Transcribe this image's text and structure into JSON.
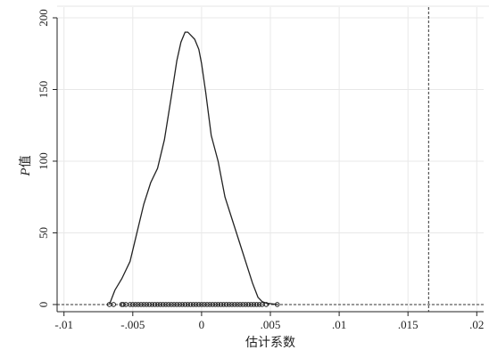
{
  "chart_data": {
    "type": "line",
    "xlabel": "估计系数",
    "ylabel_italic": "P",
    "ylabel_rest": "值",
    "xlim": [
      -0.0105,
      0.0205
    ],
    "ylim": [
      -5,
      200
    ],
    "x_ticks": [
      {
        "value": -0.01,
        "label": "-.01"
      },
      {
        "value": -0.005,
        "label": "-.005"
      },
      {
        "value": 0,
        "label": "0"
      },
      {
        "value": 0.005,
        "label": ".005"
      },
      {
        "value": 0.01,
        "label": ".01"
      },
      {
        "value": 0.015,
        "label": ".015"
      },
      {
        "value": 0.02,
        "label": ".02"
      }
    ],
    "y_ticks": [
      {
        "value": 0,
        "label": "0"
      },
      {
        "value": 50,
        "label": "50"
      },
      {
        "value": 100,
        "label": "100"
      },
      {
        "value": 150,
        "label": "150"
      },
      {
        "value": 200,
        "label": "200"
      }
    ],
    "grid": true,
    "reference_lines": {
      "vertical_x": 0.0165,
      "horizontal_y": 0
    },
    "series": [
      {
        "type": "density_line",
        "color": "#222222",
        "x": [
          -0.0067,
          -0.0063,
          -0.0058,
          -0.0052,
          -0.0047,
          -0.0042,
          -0.0037,
          -0.0032,
          -0.0027,
          -0.0022,
          -0.0018,
          -0.0015,
          -0.0012,
          -0.001,
          -0.0008,
          -0.0005,
          -0.0002,
          0.0,
          0.0003,
          0.0007,
          0.0012,
          0.0017,
          0.0022,
          0.0027,
          0.0032,
          0.0037,
          0.0041,
          0.0044,
          0.0047,
          0.0051,
          0.0055
        ],
        "y": [
          0,
          10,
          18,
          30,
          50,
          70,
          85,
          95,
          115,
          145,
          170,
          183,
          190,
          190,
          188,
          185,
          178,
          168,
          148,
          118,
          100,
          75,
          60,
          45,
          30,
          15,
          5,
          2,
          1,
          0.5,
          0
        ]
      },
      {
        "type": "rug_points",
        "color": "#222222",
        "y": 0,
        "x": [
          -0.0067,
          -0.0064,
          -0.0058,
          -0.0057,
          -0.0055,
          -0.0052,
          -0.005,
          -0.0048,
          -0.0046,
          -0.0044,
          -0.0042,
          -0.004,
          -0.0038,
          -0.0036,
          -0.0034,
          -0.0032,
          -0.003,
          -0.0028,
          -0.0026,
          -0.0024,
          -0.0022,
          -0.002,
          -0.0018,
          -0.0016,
          -0.0014,
          -0.0012,
          -0.001,
          -0.0008,
          -0.0006,
          -0.0004,
          -0.0002,
          0.0,
          0.0002,
          0.0004,
          0.0006,
          0.0008,
          0.001,
          0.0012,
          0.0014,
          0.0016,
          0.0018,
          0.002,
          0.0022,
          0.0024,
          0.0026,
          0.0028,
          0.003,
          0.0032,
          0.0034,
          0.0036,
          0.0038,
          0.004,
          0.0042,
          0.0044,
          0.0047,
          0.0055
        ]
      }
    ]
  }
}
